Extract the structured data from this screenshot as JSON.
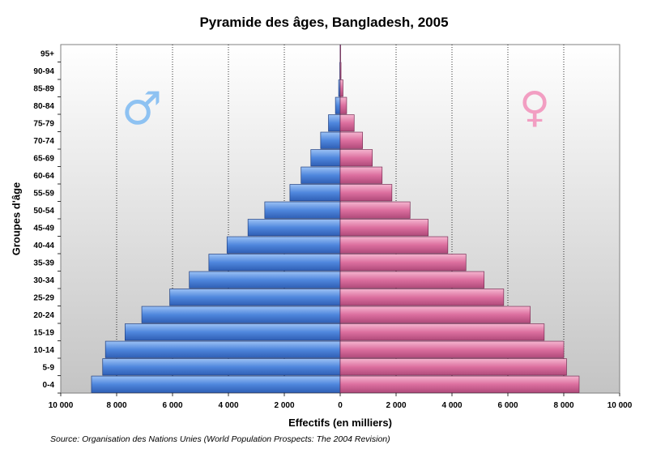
{
  "chart_data": {
    "type": "bar",
    "title": "Pyramide des âges, Bangladesh, 2005",
    "xlabel": "Effectifs (en milliers)",
    "ylabel": "Groupes d'âge",
    "source": "Source: Organisation des Nations Unies (World Population Prospects: The 2004 Revision)",
    "categories": [
      "0-4",
      "5-9",
      "10-14",
      "15-19",
      "20-24",
      "25-29",
      "30-34",
      "35-39",
      "40-44",
      "45-49",
      "50-54",
      "55-59",
      "60-64",
      "65-69",
      "70-74",
      "75-79",
      "80-84",
      "85-89",
      "90-94",
      "95+"
    ],
    "series": [
      {
        "name": "♂",
        "values": [
          8900,
          8500,
          8400,
          7700,
          7100,
          6100,
          5400,
          4700,
          4050,
          3300,
          2700,
          1800,
          1400,
          1050,
          700,
          420,
          170,
          55,
          15,
          3
        ]
      },
      {
        "name": "♀",
        "values": [
          8550,
          8100,
          8000,
          7300,
          6800,
          5850,
          5150,
          4500,
          3850,
          3150,
          2500,
          1850,
          1500,
          1150,
          800,
          500,
          230,
          100,
          30,
          5
        ]
      }
    ],
    "xlim": [
      -10000,
      10000
    ],
    "xticks": [
      -10000,
      -8000,
      -6000,
      -4000,
      -2000,
      0,
      2000,
      4000,
      6000,
      8000,
      10000
    ],
    "xtick_labels": [
      "10 000",
      "8 000",
      "6 000",
      "4 000",
      "2 000",
      "0",
      "2 000",
      "4 000",
      "6 000",
      "8 000",
      "10 000"
    ],
    "colors": {
      "male": "#5b8fe0",
      "female": "#e07aa6",
      "male_symbol": "#8ec2f2",
      "female_symbol": "#f29ec2"
    },
    "grid": true
  }
}
